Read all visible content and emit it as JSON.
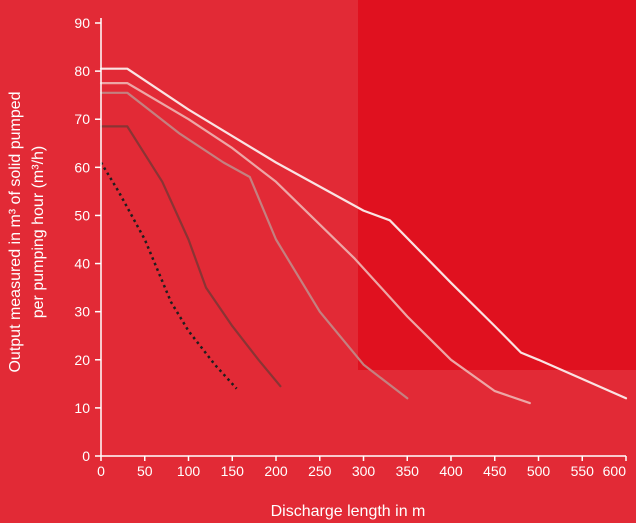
{
  "colors": {
    "background": "#e22a36",
    "panel": "#e0111f",
    "axis": "#ffffff"
  },
  "chart_data": {
    "type": "line",
    "title": "",
    "xlabel": "Discharge  length in m",
    "ylabel_lines": [
      "Output measured in m³ of solid pumped",
      "per pumping hour (m³/h)"
    ],
    "xlim": [
      0,
      600
    ],
    "ylim": [
      0,
      90
    ],
    "xticks": [
      "0",
      "50",
      "100",
      "150",
      "200",
      "250",
      "300",
      "350",
      "400",
      "450",
      "500",
      "550",
      "600"
    ],
    "yticks": [
      "0",
      "10",
      "20",
      "30",
      "40",
      "50",
      "60",
      "70",
      "80",
      "90"
    ],
    "grid": false,
    "legend": "none",
    "series": [
      {
        "color": "#fae3e3",
        "dash": false,
        "x": [
          0,
          30,
          100,
          200,
          300,
          330,
          400,
          450,
          480,
          500,
          550,
          600
        ],
        "y": [
          80.5,
          80.5,
          72,
          61,
          51,
          49,
          36,
          27,
          21.5,
          20,
          16,
          12
        ]
      },
      {
        "color": "#eda6a6",
        "dash": false,
        "x": [
          0,
          30,
          100,
          150,
          200,
          290,
          350,
          400,
          450,
          490
        ],
        "y": [
          77.5,
          77.5,
          70,
          64,
          57,
          41,
          29,
          20,
          13.5,
          11
        ]
      },
      {
        "color": "#c48080",
        "dash": false,
        "x": [
          0,
          30,
          90,
          140,
          170,
          200,
          250,
          300,
          350
        ],
        "y": [
          75.5,
          75.5,
          67,
          61,
          58,
          45,
          30,
          19,
          12
        ]
      },
      {
        "color": "#8a3434",
        "dash": false,
        "x": [
          0,
          30,
          70,
          100,
          120,
          150,
          180,
          205
        ],
        "y": [
          68.5,
          68.5,
          57,
          45,
          35,
          27,
          20,
          14.5
        ]
      },
      {
        "color": "#1e1e1e",
        "dash": true,
        "x": [
          0,
          20,
          50,
          80,
          100,
          130,
          155
        ],
        "y": [
          61,
          55,
          45,
          32,
          26,
          19,
          14
        ]
      }
    ]
  }
}
